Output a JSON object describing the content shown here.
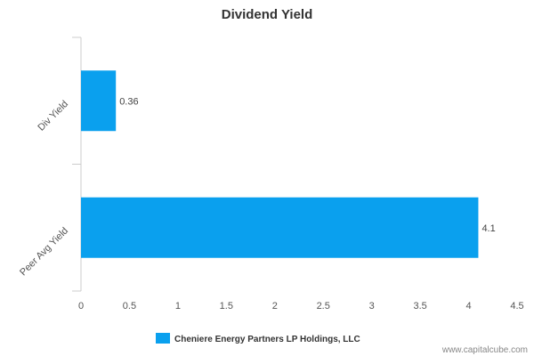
{
  "chart_data": {
    "type": "bar",
    "orientation": "horizontal",
    "title": "Dividend Yield",
    "categories": [
      "Div Yield",
      "Peer Avg Yield"
    ],
    "series": [
      {
        "name": "Cheniere Energy Partners LP Holdings, LLC",
        "values": [
          0.36,
          4.1
        ]
      }
    ],
    "data_labels": [
      "0.36",
      "4.1"
    ],
    "xlim": [
      0,
      4.5
    ],
    "x_ticks": [
      "0",
      "0.5",
      "1",
      "1.5",
      "2",
      "2.5",
      "3",
      "3.5",
      "4",
      "4.5"
    ],
    "grid": false,
    "legend_position": "bottom-center",
    "bar_color": "#0aa0ee"
  },
  "watermark": "www.capitalcube.com"
}
